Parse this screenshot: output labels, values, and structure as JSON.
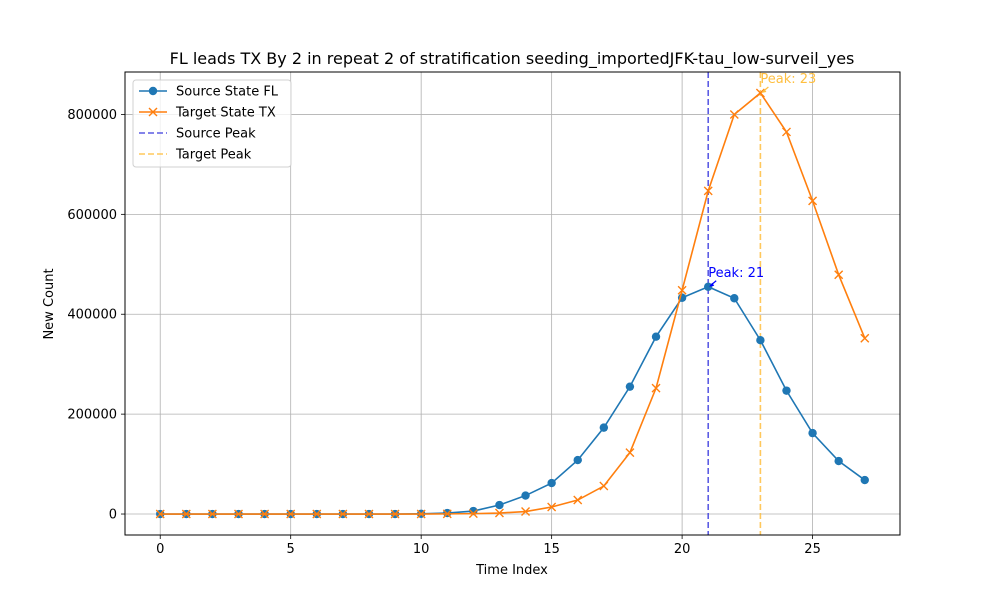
{
  "chart_data": {
    "type": "line",
    "title": "FL leads TX By 2 in repeat 2 of stratification seeding_importedJFK-tau_low-surveil_yes",
    "xlabel": "Time Index",
    "ylabel": "New Count",
    "xlim": [
      -1.35,
      28.35
    ],
    "ylim": [
      -42000,
      885000
    ],
    "x_ticks": [
      0,
      5,
      10,
      15,
      20,
      25
    ],
    "y_ticks": [
      0,
      200000,
      400000,
      600000,
      800000
    ],
    "grid": true,
    "legend_position": "top-left",
    "x": [
      0,
      1,
      2,
      3,
      4,
      5,
      6,
      7,
      8,
      9,
      10,
      11,
      12,
      13,
      14,
      15,
      16,
      17,
      18,
      19,
      20,
      21,
      22,
      23,
      24,
      25,
      26,
      27
    ],
    "series": [
      {
        "name": "Source State FL",
        "color": "#1f77b4",
        "marker": "circle",
        "values": [
          0,
          0,
          0,
          0,
          0,
          0,
          0,
          0,
          0,
          0,
          500,
          2000,
          6000,
          18000,
          37000,
          62000,
          108000,
          173000,
          255000,
          355000,
          433000,
          455000,
          432000,
          348000,
          247000,
          162000,
          106000,
          68000
        ]
      },
      {
        "name": "Target State TX",
        "color": "#ff7f0e",
        "marker": "x",
        "values": [
          0,
          0,
          0,
          0,
          0,
          0,
          0,
          0,
          0,
          0,
          0,
          300,
          800,
          2000,
          5000,
          14000,
          28000,
          56000,
          123000,
          252000,
          448000,
          647000,
          800000,
          843000,
          765000,
          627000,
          479000,
          352000
        ]
      }
    ],
    "reference_lines": [
      {
        "name": "Source Peak",
        "x": 21,
        "color": "#4040e0",
        "style": "dashed"
      },
      {
        "name": "Target Peak",
        "x": 23,
        "color": "#ffbf40",
        "style": "dashed"
      }
    ],
    "annotations": [
      {
        "text": "Peak: 21",
        "x": 21,
        "y": 455000,
        "color": "#0000ff"
      },
      {
        "text": "Peak: 23",
        "x": 23,
        "y": 843000,
        "color": "#ffbf40"
      }
    ]
  }
}
